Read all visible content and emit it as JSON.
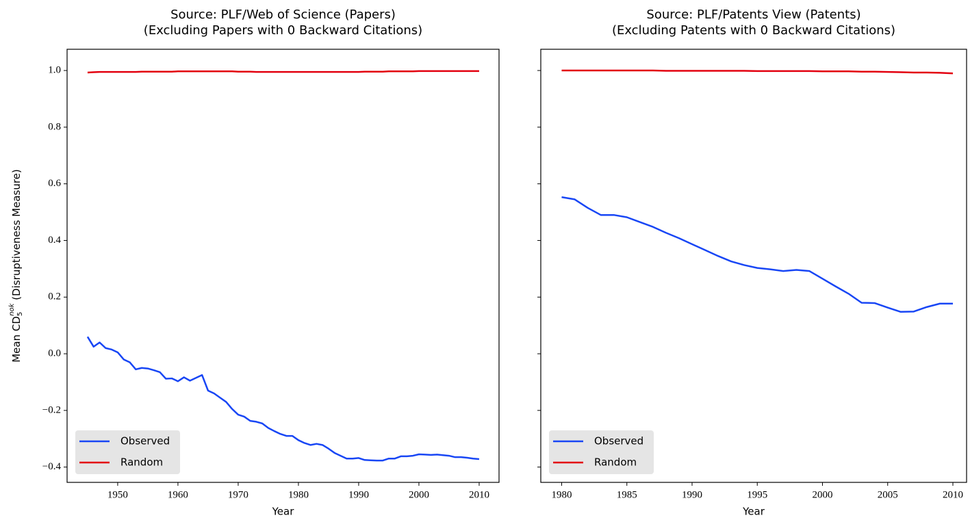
{
  "chart_data": [
    {
      "type": "line",
      "title": [
        "Source: PLF/Web of Science (Papers)",
        "(Excluding Papers with 0 Backward Citations)"
      ],
      "xlabel": "Year",
      "ylabel": [
        "Mean CD",
        "5",
        "nok",
        " (Disruptiveness Measure)"
      ],
      "x": [
        1945,
        1946,
        1947,
        1948,
        1949,
        1950,
        1951,
        1952,
        1953,
        1954,
        1955,
        1956,
        1957,
        1958,
        1959,
        1960,
        1961,
        1962,
        1963,
        1964,
        1965,
        1966,
        1967,
        1968,
        1969,
        1970,
        1971,
        1972,
        1973,
        1974,
        1975,
        1976,
        1977,
        1978,
        1979,
        1980,
        1981,
        1982,
        1983,
        1984,
        1985,
        1986,
        1987,
        1988,
        1989,
        1990,
        1991,
        1992,
        1993,
        1994,
        1995,
        1996,
        1997,
        1998,
        1999,
        2000,
        2001,
        2002,
        2003,
        2004,
        2005,
        2006,
        2007,
        2008,
        2009,
        2010
      ],
      "series": [
        {
          "name": "Observed",
          "color": "#1846f5",
          "values": [
            0.06,
            0.025,
            0.04,
            0.02,
            0.015,
            0.005,
            -0.02,
            -0.03,
            -0.055,
            -0.05,
            -0.052,
            -0.058,
            -0.065,
            -0.088,
            -0.087,
            -0.097,
            -0.083,
            -0.095,
            -0.085,
            -0.075,
            -0.13,
            -0.14,
            -0.155,
            -0.17,
            -0.195,
            -0.215,
            -0.222,
            -0.237,
            -0.24,
            -0.246,
            -0.262,
            -0.273,
            -0.283,
            -0.29,
            -0.29,
            -0.305,
            -0.315,
            -0.322,
            -0.318,
            -0.322,
            -0.335,
            -0.35,
            -0.36,
            -0.37,
            -0.37,
            -0.368,
            -0.375,
            -0.376,
            -0.377,
            -0.377,
            -0.37,
            -0.37,
            -0.362,
            -0.362,
            -0.36,
            -0.355,
            -0.356,
            -0.357,
            -0.356,
            -0.358,
            -0.36,
            -0.365,
            -0.365,
            -0.367,
            -0.37,
            -0.372
          ]
        },
        {
          "name": "Random",
          "color": "#e3000f",
          "values": [
            0.993,
            0.994,
            0.995,
            0.995,
            0.995,
            0.995,
            0.995,
            0.995,
            0.995,
            0.996,
            0.996,
            0.996,
            0.996,
            0.996,
            0.996,
            0.997,
            0.997,
            0.997,
            0.997,
            0.997,
            0.997,
            0.997,
            0.997,
            0.997,
            0.997,
            0.996,
            0.996,
            0.996,
            0.995,
            0.995,
            0.995,
            0.995,
            0.995,
            0.995,
            0.995,
            0.995,
            0.995,
            0.995,
            0.995,
            0.995,
            0.995,
            0.995,
            0.995,
            0.995,
            0.995,
            0.995,
            0.996,
            0.996,
            0.996,
            0.996,
            0.997,
            0.997,
            0.997,
            0.997,
            0.997,
            0.998,
            0.998,
            0.998,
            0.998,
            0.998,
            0.998,
            0.998,
            0.998,
            0.998,
            0.998,
            0.998
          ]
        }
      ],
      "xlim": [
        1941.6,
        2013.3
      ],
      "xticks": [
        1950,
        1960,
        1970,
        1980,
        1990,
        2000,
        2010
      ],
      "ylim": [
        -0.454,
        1.075
      ],
      "yticks": [
        {
          "value": -0.4,
          "label": "−0.4"
        },
        {
          "value": -0.2,
          "label": "−0.2"
        },
        {
          "value": 0,
          "label": "0.0"
        },
        0.2,
        0.4,
        0.6,
        0.8,
        {
          "value": 1,
          "label": "1.0"
        }
      ],
      "legend": "lower left"
    },
    {
      "type": "line",
      "title": [
        "Source: PLF/Patents View (Patents)",
        "(Excluding Patents with 0 Backward Citations)"
      ],
      "xlabel": "Year",
      "x": [
        1980,
        1981,
        1982,
        1983,
        1984,
        1985,
        1986,
        1987,
        1988,
        1989,
        1990,
        1991,
        1992,
        1993,
        1994,
        1995,
        1996,
        1997,
        1998,
        1999,
        2000,
        2001,
        2002,
        2003,
        2004,
        2005,
        2006,
        2007,
        2008,
        2009,
        2010
      ],
      "series": [
        {
          "name": "Observed",
          "color": "#1846f5",
          "values": [
            0.553,
            0.545,
            0.515,
            0.49,
            0.49,
            0.482,
            0.465,
            0.448,
            0.427,
            0.408,
            0.387,
            0.366,
            0.345,
            0.326,
            0.313,
            0.303,
            0.298,
            0.292,
            0.296,
            0.292,
            0.265,
            0.238,
            0.212,
            0.18,
            0.179,
            0.163,
            0.148,
            0.149,
            0.165,
            0.177,
            0.177
          ]
        },
        {
          "name": "Random",
          "color": "#e3000f",
          "values": [
            1.0,
            1.0,
            1.0,
            1.0,
            1.0,
            1.0,
            1.0,
            1.0,
            0.999,
            0.999,
            0.999,
            0.999,
            0.999,
            0.999,
            0.999,
            0.998,
            0.998,
            0.998,
            0.998,
            0.998,
            0.997,
            0.997,
            0.997,
            0.996,
            0.996,
            0.995,
            0.994,
            0.993,
            0.993,
            0.992,
            0.99
          ]
        }
      ],
      "xlim": [
        1978.4,
        2011.05
      ],
      "xticks": [
        1980,
        1985,
        1990,
        1995,
        2000,
        2005,
        2010
      ],
      "ylim": [
        -0.454,
        1.075
      ],
      "yticks": [
        -0.4,
        -0.2,
        0,
        0.2,
        0.4,
        0.6,
        0.8,
        1
      ],
      "legend": "lower left"
    }
  ]
}
